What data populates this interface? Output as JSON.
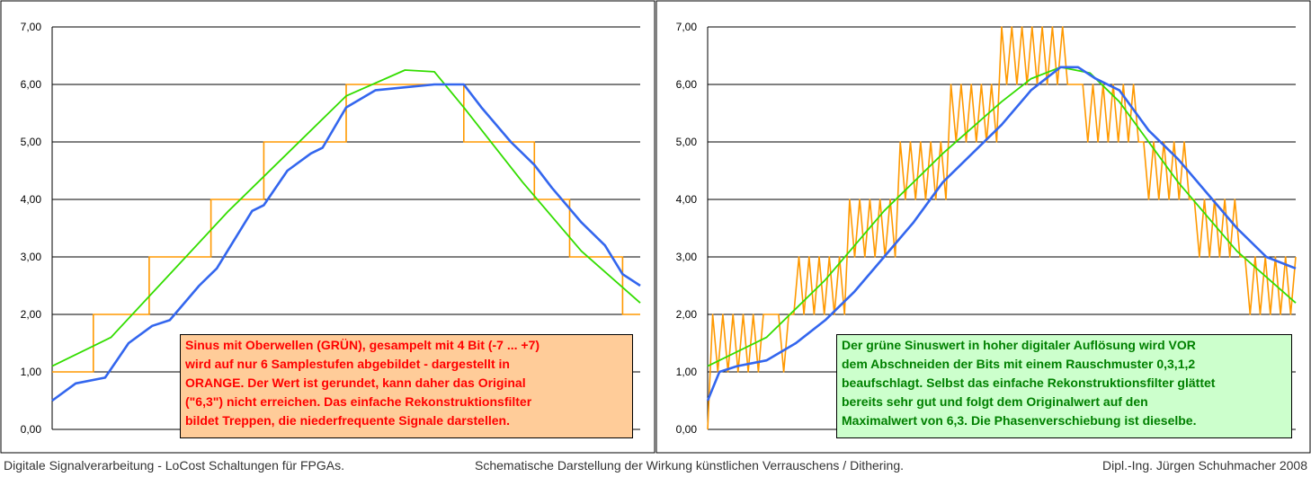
{
  "chart_data": [
    {
      "type": "line",
      "ylim": [
        0,
        7
      ],
      "yticks": [
        "0,00",
        "1,00",
        "2,00",
        "3,00",
        "4,00",
        "5,00",
        "6,00",
        "7,00"
      ],
      "grid": true,
      "series": [
        {
          "color": "#ff9900",
          "kind": "quantized-steps",
          "x": [
            0,
            0.07,
            0.07,
            0.165,
            0.165,
            0.27,
            0.27,
            0.36,
            0.36,
            0.5,
            0.5,
            0.7,
            0.7,
            0.82,
            0.82,
            0.88,
            0.88,
            0.97,
            0.97,
            1.0
          ],
          "values": [
            1,
            1,
            2,
            2,
            3,
            3,
            4,
            4,
            5,
            5,
            6,
            6,
            5,
            5,
            4,
            4,
            3,
            3,
            2,
            2
          ]
        },
        {
          "color": "#33dd00",
          "kind": "sine",
          "x": [
            0,
            0.1,
            0.2,
            0.3,
            0.4,
            0.5,
            0.6,
            0.65,
            0.7,
            0.8,
            0.9,
            1.0
          ],
          "values": [
            1.1,
            1.6,
            2.7,
            3.8,
            4.8,
            5.8,
            6.25,
            6.22,
            5.6,
            4.3,
            3.1,
            2.2
          ]
        },
        {
          "color": "#3366ee",
          "kind": "filtered",
          "x": [
            0,
            0.04,
            0.09,
            0.13,
            0.17,
            0.2,
            0.25,
            0.28,
            0.34,
            0.36,
            0.4,
            0.44,
            0.46,
            0.5,
            0.55,
            0.6,
            0.65,
            0.7,
            0.73,
            0.78,
            0.82,
            0.85,
            0.9,
            0.94,
            0.97,
            1.0
          ],
          "values": [
            0.5,
            0.8,
            0.9,
            1.5,
            1.8,
            1.9,
            2.5,
            2.8,
            3.8,
            3.9,
            4.5,
            4.8,
            4.9,
            5.6,
            5.9,
            5.95,
            6.0,
            6.0,
            5.6,
            5.0,
            4.6,
            4.2,
            3.6,
            3.2,
            2.7,
            2.5
          ]
        }
      ]
    },
    {
      "type": "line",
      "ylim": [
        0,
        7
      ],
      "yticks": [
        "0,00",
        "1,00",
        "2,00",
        "3,00",
        "4,00",
        "5,00",
        "6,00",
        "7,00"
      ],
      "grid": true,
      "series": [
        {
          "color": "#ff9900",
          "kind": "dithered",
          "values": [
            0,
            2,
            1,
            2,
            1,
            2,
            1,
            2,
            1,
            2,
            1,
            2,
            2,
            2,
            2,
            1,
            2,
            2,
            3,
            2,
            3,
            2,
            3,
            2,
            3,
            2,
            3,
            2,
            4,
            3,
            4,
            3,
            4,
            3,
            4,
            3,
            4,
            3,
            5,
            4,
            5,
            4,
            5,
            4,
            5,
            4,
            5,
            4,
            6,
            5,
            6,
            5,
            6,
            5,
            6,
            5,
            6,
            5,
            7,
            6,
            7,
            6,
            7,
            6,
            7,
            6,
            7,
            6,
            7,
            6,
            7,
            6,
            6,
            6,
            6,
            5,
            6,
            5,
            6,
            5,
            6,
            5,
            6,
            5,
            6,
            5,
            5,
            4,
            5,
            4,
            5,
            4,
            5,
            4,
            5,
            4,
            4,
            3,
            4,
            3,
            4,
            3,
            4,
            3,
            4,
            3,
            3,
            2,
            3,
            2,
            3,
            2,
            3,
            2,
            3,
            2,
            3
          ]
        },
        {
          "color": "#33dd00",
          "kind": "sine",
          "x": [
            0,
            0.1,
            0.2,
            0.3,
            0.4,
            0.5,
            0.55,
            0.6,
            0.65,
            0.7,
            0.8,
            0.9,
            1.0
          ],
          "values": [
            1.1,
            1.6,
            2.6,
            3.8,
            4.8,
            5.7,
            6.1,
            6.3,
            6.2,
            5.7,
            4.3,
            3.1,
            2.2
          ]
        },
        {
          "color": "#3366ee",
          "kind": "filtered",
          "x": [
            0,
            0.02,
            0.05,
            0.1,
            0.15,
            0.2,
            0.25,
            0.3,
            0.35,
            0.4,
            0.45,
            0.5,
            0.55,
            0.6,
            0.63,
            0.66,
            0.7,
            0.75,
            0.8,
            0.85,
            0.9,
            0.95,
            1.0
          ],
          "values": [
            0.5,
            1.0,
            1.1,
            1.2,
            1.5,
            1.9,
            2.4,
            3.0,
            3.6,
            4.3,
            4.8,
            5.3,
            5.9,
            6.3,
            6.3,
            6.1,
            5.9,
            5.2,
            4.7,
            4.1,
            3.5,
            3.0,
            2.8
          ]
        }
      ]
    }
  ],
  "notes": {
    "left": [
      "Sinus mit Oberwellen (GRÜN), gesampelt mit 4 Bit (-7 ... +7)",
      "wird auf nur 6 Samplestufen abgebildet - dargestellt in",
      "ORANGE.  Der Wert ist gerundet, kann daher das Original",
      "(\"6,3\") nicht erreichen. Das einfache Rekonstruktionsfilter",
      "bildet Treppen, die niederfrequente Signale darstellen."
    ],
    "right": [
      "Der grüne Sinuswert in hoher digitaler Auflösung wird VOR",
      "dem Abschneiden der Bits mit einem Rauschmuster 0,3,1,2",
      "beaufschlagt. Selbst das einfache Rekonstruktionsfilter glättet",
      "bereits sehr gut und folgt dem Originalwert auf den",
      "Maximalwert von 6,3. Die Phasenverschiebung ist dieselbe."
    ]
  },
  "footer": {
    "left": "Digitale Signalverarbeitung - LoCost Schaltungen für FPGAs.",
    "center": "Schematische Darstellung der Wirkung künstlichen Verrauschens / Dithering.",
    "right": "Dipl.-Ing. Jürgen Schuhmacher 2008"
  }
}
